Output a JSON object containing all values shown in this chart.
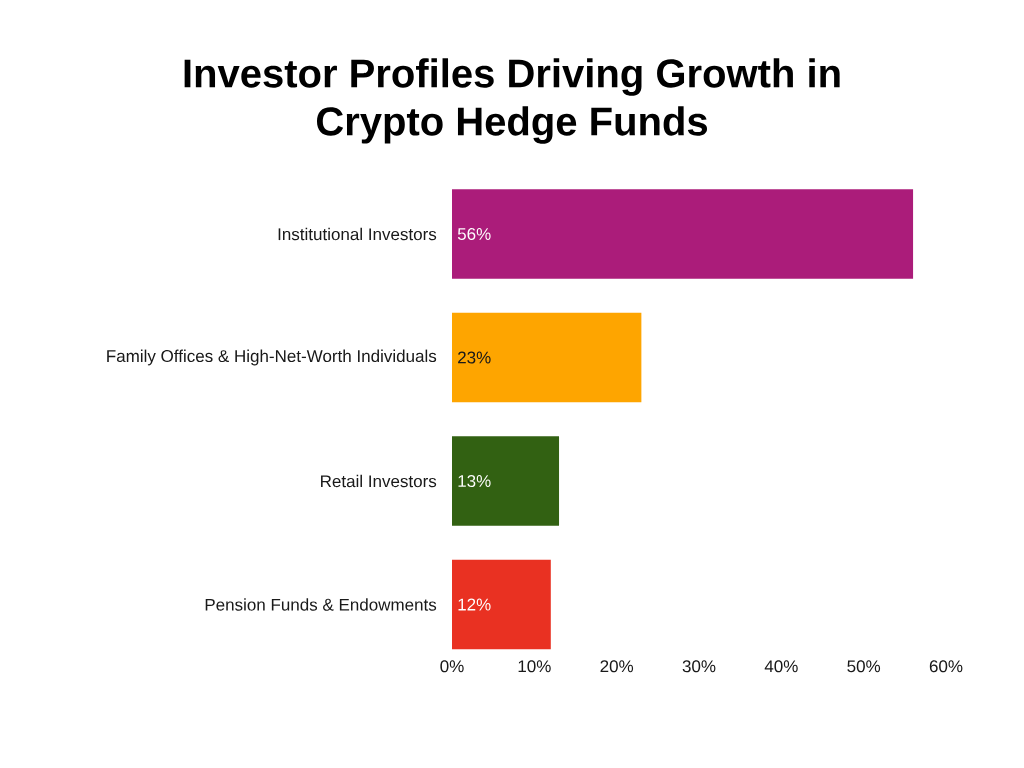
{
  "chart_data": {
    "type": "bar",
    "orientation": "horizontal",
    "title": "Investor Profiles Driving Growth in Crypto Hedge Funds",
    "categories": [
      "Institutional Investors",
      "Family Offices & High-Net-Worth Individuals",
      "Retail Investors",
      "Pension Funds & Endowments"
    ],
    "values": [
      56,
      23,
      13,
      12
    ],
    "colors": [
      "#ab1c7a",
      "#fea500",
      "#326112",
      "#e93122"
    ],
    "value_labels": [
      "56%",
      "23%",
      "13%",
      "12%"
    ],
    "xlim": [
      0,
      60
    ],
    "xticks": [
      {
        "value": 0,
        "label": "0%"
      },
      {
        "value": 10,
        "label": "10%"
      },
      {
        "value": 20,
        "label": "20%"
      },
      {
        "value": 30,
        "label": "30%"
      },
      {
        "value": 40,
        "label": "40%"
      },
      {
        "value": 50,
        "label": "50%"
      },
      {
        "value": 60,
        "label": "60%"
      }
    ]
  }
}
